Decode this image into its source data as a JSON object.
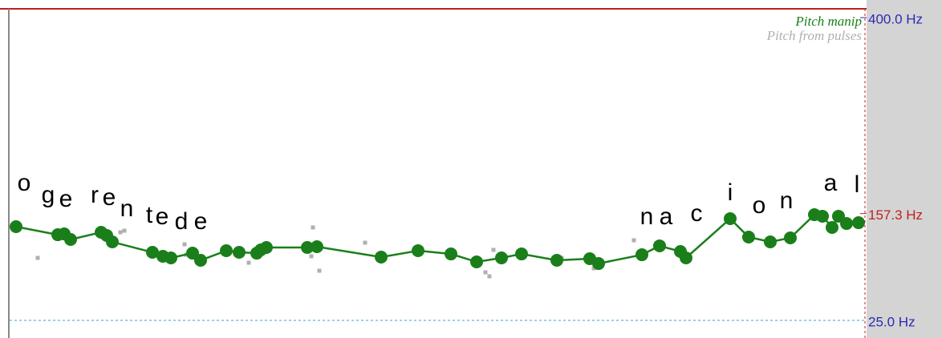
{
  "chart_data": {
    "type": "line",
    "legend": "top-right",
    "ylim": [
      25,
      400
    ],
    "yticks": [
      {
        "value": 400,
        "label": "400.0 Hz"
      },
      {
        "value": 157.3,
        "label": "157.3 Hz"
      },
      {
        "value": 25,
        "label": "25.0 Hz"
      }
    ],
    "tick_colors": [
      "#2b2bb0",
      "#c02020",
      "#2b2bb0"
    ],
    "series": [
      {
        "name": "Pitch manip",
        "color": "#1a7f1a",
        "values": [
          141.1,
          131.1,
          132.1,
          125.2,
          134.1,
          130.2,
          122.2,
          109.3,
          104.4,
          102.4,
          108.3,
          99.4,
          111.3,
          109.3,
          108.3,
          112.3,
          115.3,
          115.3,
          116.3,
          103.4,
          111.3,
          107.3,
          97.4,
          102.4,
          107.3,
          99.4,
          101.4,
          95.4,
          106.3,
          117.3,
          110.3,
          102.4,
          151.0,
          128.2,
          122.2,
          127.2,
          155.9,
          154.0,
          140.1,
          154.0,
          145.0,
          146.0
        ]
      },
      {
        "name": "Pitch from pulses",
        "color": "#b0b0b0",
        "values": [
          102.4,
          134.1,
          136.1,
          106.3,
          119.2,
          140.1,
          86.5,
          104.4,
          121.2,
          79.6,
          112.3,
          102.4,
          89.5,
          124.2,
          96.4,
          84.5
        ]
      }
    ],
    "annotations": [
      "o",
      "g",
      "e",
      "r",
      "e",
      "n",
      "t",
      "e",
      "d",
      "e",
      "n",
      "a",
      "c",
      "i",
      "o",
      "n",
      "a",
      "l"
    ]
  }
}
